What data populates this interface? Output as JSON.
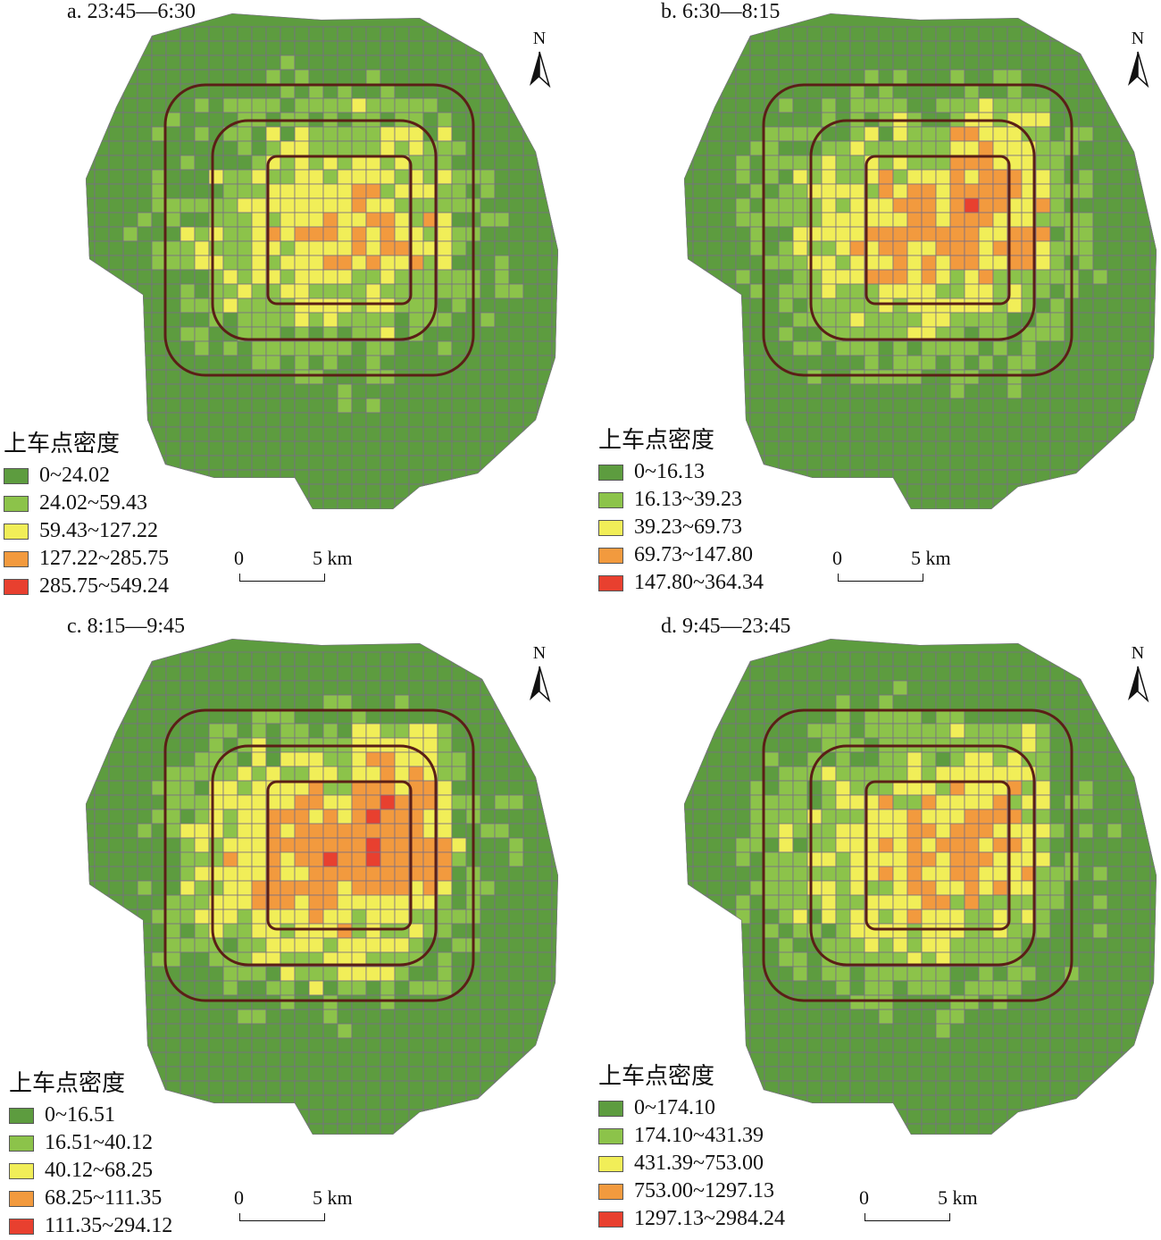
{
  "colors": {
    "class1": "#5d9c3f",
    "class2": "#8cc34a",
    "class3": "#f1ee58",
    "class4": "#f29a3e",
    "class5": "#e8402f",
    "grid": "#7a6f86",
    "ring": "#5b1f16"
  },
  "north_label": "N",
  "scale": {
    "zero": "0",
    "max": "5 km"
  },
  "panels": [
    {
      "title": "a. 23:45—6:30",
      "legend_title": "上车点密度",
      "classes": [
        "0~24.02",
        "24.02~59.43",
        "59.43~127.22",
        "127.22~285.75",
        "285.75~549.24"
      ],
      "intensity": 0.55
    },
    {
      "title": "b. 6:30—8:15",
      "legend_title": "上车点密度",
      "classes": [
        "0~16.13",
        "16.13~39.23",
        "39.23~69.73",
        "69.73~147.80",
        "147.80~364.34"
      ],
      "intensity": 0.8
    },
    {
      "title": "c. 8:15—9:45",
      "legend_title": "上车点密度",
      "classes": [
        "0~16.51",
        "16.51~40.12",
        "40.12~68.25",
        "68.25~111.35",
        "111.35~294.12"
      ],
      "intensity": 1.0
    },
    {
      "title": "d. 9:45—23:45",
      "legend_title": "上车点密度",
      "classes": [
        "0~174.10",
        "174.10~431.39",
        "431.39~753.00",
        "753.00~1297.13",
        "1297.13~2984.24"
      ],
      "intensity": 0.7
    }
  ]
}
